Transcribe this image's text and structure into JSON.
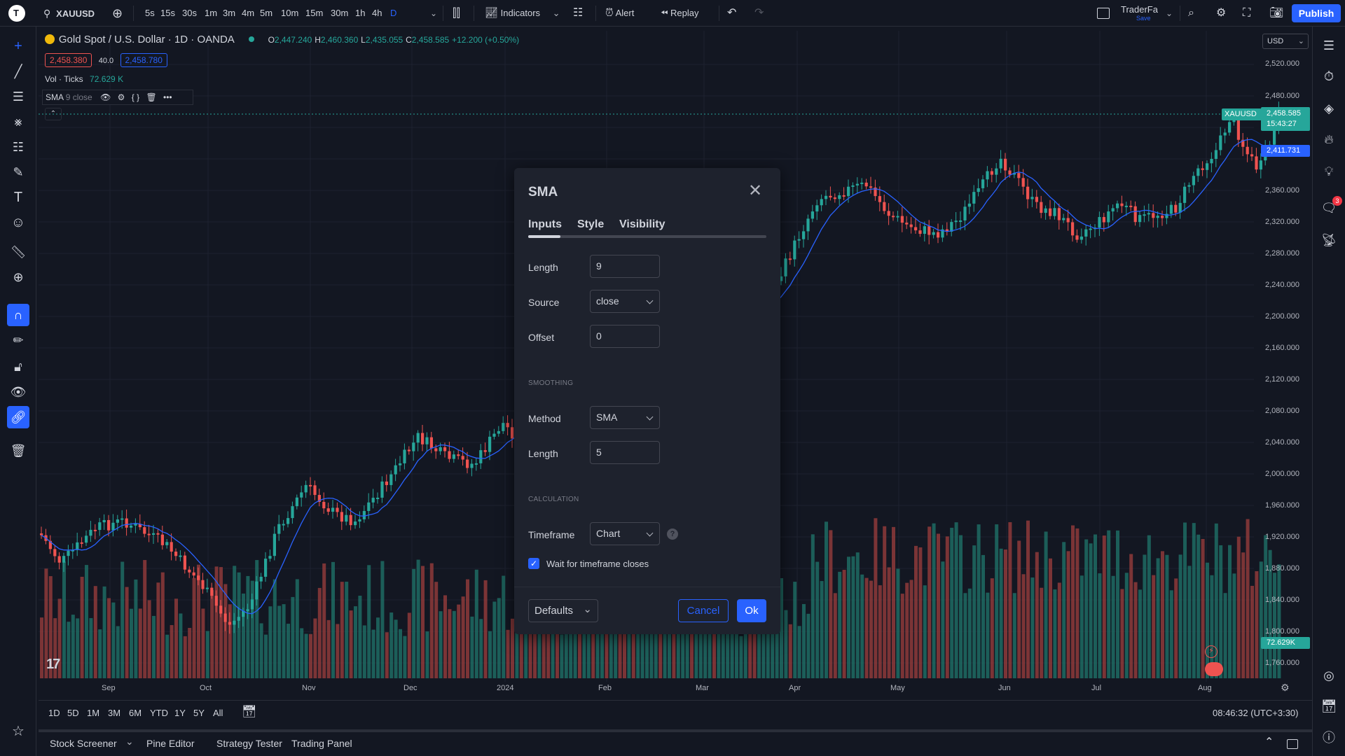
{
  "topbar": {
    "symbol": "XAUUSD",
    "intervals": [
      "5s",
      "15s",
      "30s",
      "1m",
      "3m",
      "4m",
      "5m",
      "10m",
      "15m",
      "30m",
      "1h",
      "4h",
      "D"
    ],
    "indicators_label": "Indicators",
    "alert_label": "Alert",
    "replay_label": "Replay",
    "user_name": "TraderFa",
    "save_label": "Save",
    "publish_label": "Publish"
  },
  "legend": {
    "title": "Gold Spot / U.S. Dollar · 1D · OANDA",
    "o_label": "O",
    "o_val": "2,447.240",
    "h_label": "H",
    "h_val": "2,460.360",
    "l_label": "L",
    "l_val": "2,435.055",
    "c_label": "C",
    "c_val": "2,458.585",
    "change": "+12.200 (+0.50%)",
    "bid": "2,458.380",
    "spread": "40.0",
    "ask": "2,458.780",
    "vol_label": "Vol · Ticks",
    "vol_val": "72.629 K",
    "sma_label": "SMA",
    "sma_params": "9 close"
  },
  "price_axis": {
    "currency": "USD",
    "ticks": [
      "2,520.000",
      "2,480.000",
      "2,360.000",
      "2,320.000",
      "2,280.000",
      "2,240.000",
      "2,200.000",
      "2,160.000",
      "2,120.000",
      "2,080.000",
      "2,040.000",
      "2,000.000",
      "1,960.000",
      "1,920.000",
      "1,880.000",
      "1,840.000",
      "1,800.000",
      "1,760.000"
    ],
    "symbol_tag": "XAUUSD",
    "last_price": "2,458.585",
    "countdown": "15:43:27",
    "sma_price": "2,411.731",
    "vol_price": "72.629K"
  },
  "time_axis": {
    "labels": [
      "Sep",
      "Oct",
      "Nov",
      "Dec",
      "2024",
      "Feb",
      "Mar",
      "Apr",
      "May",
      "Jun",
      "Jul",
      "Aug"
    ]
  },
  "ranges": [
    "1D",
    "5D",
    "1M",
    "3M",
    "6M",
    "YTD",
    "1Y",
    "5Y",
    "All"
  ],
  "clock": "08:46:32 (UTC+3:30)",
  "bottom_tabs": [
    "Stock Screener",
    "Pine Editor",
    "Strategy Tester",
    "Trading Panel"
  ],
  "dialog": {
    "title": "SMA",
    "tabs": [
      "Inputs",
      "Style",
      "Visibility"
    ],
    "length_label": "Length",
    "length_val": "9",
    "source_label": "Source",
    "source_val": "close",
    "offset_label": "Offset",
    "offset_val": "0",
    "smoothing_header": "SMOOTHING",
    "method_label": "Method",
    "method_val": "SMA",
    "slength_label": "Length",
    "slength_val": "5",
    "calc_header": "CALCULATION",
    "timeframe_label": "Timeframe",
    "timeframe_val": "Chart",
    "wait_label": "Wait for timeframe closes",
    "defaults_label": "Defaults",
    "cancel_label": "Cancel",
    "ok_label": "Ok"
  },
  "badge": "3",
  "colors": {
    "up": "#26a69a",
    "down": "#ef5350",
    "accent": "#2962ff",
    "sma": "#2962ff"
  }
}
